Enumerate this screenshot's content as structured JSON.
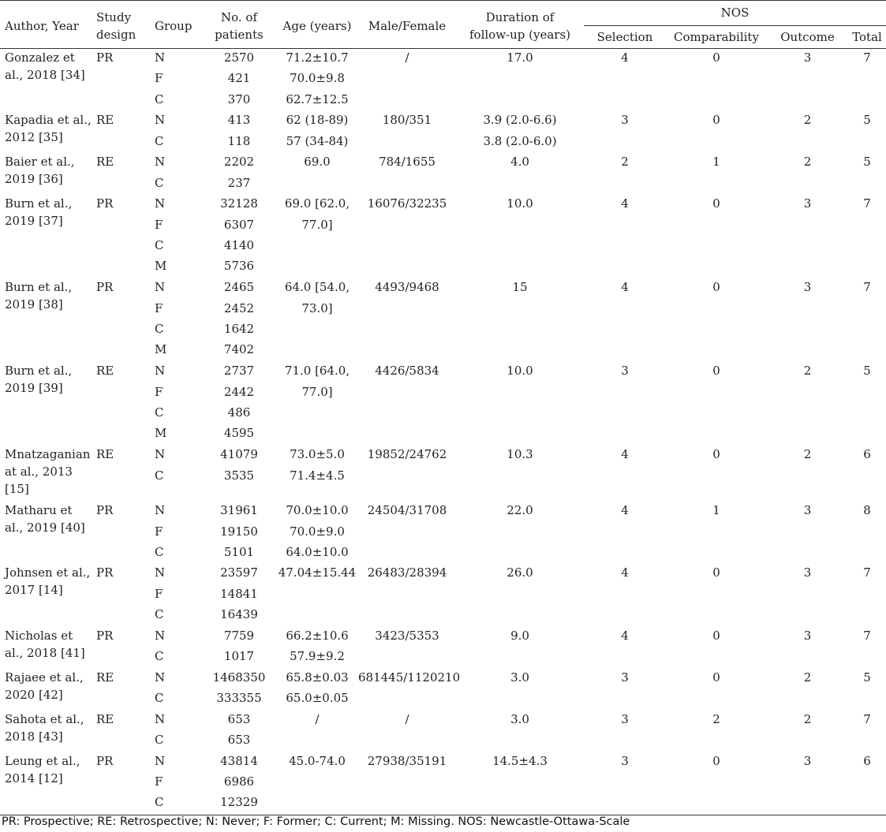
{
  "header": {
    "author": "Author, Year",
    "design": [
      "Study",
      "design"
    ],
    "group": "Group",
    "patients": [
      "No. of",
      "patients"
    ],
    "age": "Age (years)",
    "mf": "Male/Female",
    "followup": [
      "Duration of",
      "follow-up (years)"
    ],
    "nos": "NOS",
    "nos_sub": [
      "Selection",
      "Comparability",
      "Outcome",
      "Total"
    ]
  },
  "rows": [
    {
      "author": "Gonzalez et al., 2018 [34]",
      "design": "PR",
      "groups": [
        "N",
        "F",
        "C"
      ],
      "patients": [
        "2570",
        "421",
        "370"
      ],
      "age": [
        "71.2±10.7",
        "70.0±9.8",
        "62.7±12.5"
      ],
      "mf": [
        "/"
      ],
      "followup": [
        "17.0"
      ],
      "selection": "4",
      "comparability": "0",
      "outcome": "3",
      "total": "7"
    },
    {
      "author": "Kapadia et al., 2012 [35]",
      "design": "RE",
      "groups": [
        "N",
        "C"
      ],
      "patients": [
        "413",
        "118"
      ],
      "age": [
        "62 (18-89)",
        "57 (34-84)"
      ],
      "mf": [
        "180/351"
      ],
      "followup": [
        "3.9 (2.0-6.6)",
        "3.8 (2.0-6.0)"
      ],
      "selection": "3",
      "comparability": "0",
      "outcome": "2",
      "total": "5"
    },
    {
      "author": "Baier et al., 2019 [36]",
      "design": "RE",
      "groups": [
        "N",
        "C"
      ],
      "patients": [
        "2202",
        "237"
      ],
      "age": [
        "69.0"
      ],
      "mf": [
        "784/1655"
      ],
      "followup": [
        "4.0"
      ],
      "selection": "2",
      "comparability": "1",
      "outcome": "2",
      "total": "5"
    },
    {
      "author": "Burn et al., 2019 [37]",
      "design": "PR",
      "groups": [
        "N",
        "F",
        "C",
        "M"
      ],
      "patients": [
        "32128",
        "6307",
        "4140",
        "5736"
      ],
      "age": [
        "69.0 [62.0,",
        "77.0]"
      ],
      "mf": [
        "16076/32235"
      ],
      "followup": [
        "10.0"
      ],
      "selection": "4",
      "comparability": "0",
      "outcome": "3",
      "total": "7"
    },
    {
      "author": "Burn et al., 2019 [38]",
      "design": "PR",
      "groups": [
        "N",
        "F",
        "C",
        "M"
      ],
      "patients": [
        "2465",
        "2452",
        "1642",
        "7402"
      ],
      "age": [
        "64.0 [54.0,",
        "73.0]"
      ],
      "mf": [
        "4493/9468"
      ],
      "followup": [
        "15"
      ],
      "selection": "4",
      "comparability": "0",
      "outcome": "3",
      "total": "7"
    },
    {
      "author": "Burn et al., 2019 [39]",
      "design": "RE",
      "groups": [
        "N",
        "F",
        "C",
        "M"
      ],
      "patients": [
        "2737",
        "2442",
        "486",
        "4595"
      ],
      "age": [
        "71.0 [64.0,",
        "77.0]"
      ],
      "mf": [
        "4426/5834"
      ],
      "followup": [
        "10.0"
      ],
      "selection": "3",
      "comparability": "0",
      "outcome": "2",
      "total": "5"
    },
    {
      "author": "Mnatzaganian at al., 2013 [15]",
      "design": "RE",
      "groups": [
        "N",
        "C"
      ],
      "patients": [
        "41079",
        "3535"
      ],
      "age": [
        "73.0±5.0",
        "71.4±4.5"
      ],
      "mf": [
        "19852/24762"
      ],
      "followup": [
        "10.3"
      ],
      "selection": "4",
      "comparability": "0",
      "outcome": "2",
      "total": "6"
    },
    {
      "author": "Matharu et al., 2019 [40]",
      "design": "PR",
      "groups": [
        "N",
        "F",
        "C"
      ],
      "patients": [
        "31961",
        "19150",
        "5101"
      ],
      "age": [
        "70.0±10.0",
        "70.0±9.0",
        "64.0±10.0"
      ],
      "mf": [
        "24504/31708"
      ],
      "followup": [
        "22.0"
      ],
      "selection": "4",
      "comparability": "1",
      "outcome": "3",
      "total": "8"
    },
    {
      "author": "Johnsen et al., 2017 [14]",
      "design": "PR",
      "groups": [
        "N",
        "F",
        "C"
      ],
      "patients": [
        "23597",
        "14841",
        "16439"
      ],
      "age": [
        "47.04±15.44"
      ],
      "mf": [
        "26483/28394"
      ],
      "followup": [
        "26.0"
      ],
      "selection": "4",
      "comparability": "0",
      "outcome": "3",
      "total": "7"
    },
    {
      "author": "Nicholas et al., 2018 [41]",
      "design": "PR",
      "groups": [
        "N",
        "C"
      ],
      "patients": [
        "7759",
        "1017"
      ],
      "age": [
        "66.2±10.6",
        "57.9±9.2"
      ],
      "mf": [
        "3423/5353"
      ],
      "followup": [
        "9.0"
      ],
      "selection": "4",
      "comparability": "0",
      "outcome": "3",
      "total": "7"
    },
    {
      "author": "Rajaee et al., 2020 [42]",
      "design": "RE",
      "groups": [
        "N",
        "C"
      ],
      "patients": [
        "1468350",
        "333355"
      ],
      "age": [
        "65.8±0.03",
        "65.0±0.05"
      ],
      "mf": [
        "681445/1120210"
      ],
      "followup": [
        "3.0"
      ],
      "selection": "3",
      "comparability": "0",
      "outcome": "2",
      "total": "5"
    },
    {
      "author": "Sahota et al., 2018 [43]",
      "design": "RE",
      "groups": [
        "N",
        "C"
      ],
      "patients": [
        "653",
        "653"
      ],
      "age": [
        "/"
      ],
      "mf": [
        "/"
      ],
      "followup": [
        "3.0"
      ],
      "selection": "3",
      "comparability": "2",
      "outcome": "2",
      "total": "7"
    },
    {
      "author": "Leung et al., 2014 [12]",
      "design": "PR",
      "groups": [
        "N",
        "F",
        "C"
      ],
      "patients": [
        "43814",
        "6986",
        "12329"
      ],
      "age": [
        "45.0-74.0"
      ],
      "mf": [
        "27938/35191"
      ],
      "followup": [
        "14.5±4.3"
      ],
      "selection": "3",
      "comparability": "0",
      "outcome": "3",
      "total": "6"
    }
  ],
  "footnote": "PR: Prospective; RE: Retrospective; N: Never; F: Former; C: Current; M: Missing. NOS: Newcastle-Ottawa-Scale"
}
